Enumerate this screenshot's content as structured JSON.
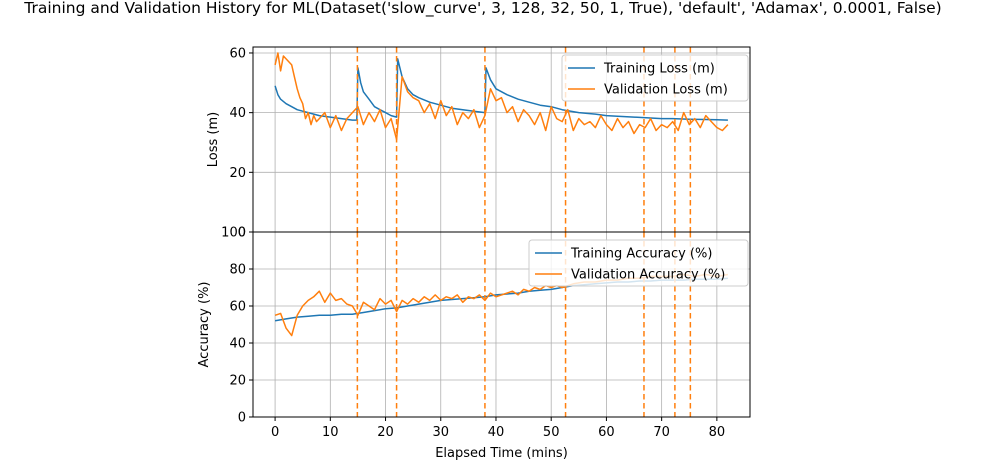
{
  "title": "Training and Validation History for ML(Dataset('slow_curve', 3, 128, 32, 50, 1, True), 'default', 'Adamax', 0.0001, False)",
  "colors": {
    "training": "#1f77b4",
    "validation": "#ff7f0e",
    "grid": "#b0b0b0"
  },
  "chart_data": [
    {
      "type": "line",
      "ylabel": "Loss (m)",
      "xlim": [
        -4,
        86
      ],
      "ylim": [
        0,
        62
      ],
      "yticks": [
        0,
        20,
        40,
        60
      ],
      "grid": true,
      "legend_position": "top-right",
      "series": [
        {
          "name": "Training Loss (m)",
          "color": "#1f77b4",
          "x": [
            0,
            0.5,
            1,
            2,
            3,
            4,
            5,
            6,
            7,
            8,
            10,
            12,
            14,
            14.8,
            15,
            15.5,
            16,
            17,
            18,
            19,
            20,
            21,
            22,
            22.2,
            23,
            24,
            25,
            26,
            28,
            30,
            32,
            34,
            36,
            38,
            38.2,
            39,
            40,
            42,
            44,
            46,
            48,
            50,
            52,
            55,
            58,
            60,
            62,
            65,
            68,
            70,
            72,
            75,
            78,
            80,
            82
          ],
          "y": [
            49,
            46,
            44.5,
            43,
            42,
            41,
            40.5,
            40,
            39.5,
            39,
            38.5,
            38,
            37.5,
            37.5,
            55,
            50,
            47,
            44.5,
            42,
            41,
            40,
            39,
            38.5,
            58,
            52,
            48,
            46,
            45,
            43.5,
            42.5,
            41.5,
            41,
            40.5,
            40,
            55,
            51,
            48,
            46,
            44.5,
            43.5,
            42.5,
            42,
            41,
            40,
            39.5,
            39,
            38.8,
            38.5,
            38.2,
            38,
            38,
            37.8,
            37.7,
            37.6,
            37.5
          ]
        },
        {
          "name": "Validation Loss (m)",
          "color": "#ff7f0e",
          "x": [
            0,
            0.5,
            1,
            1.5,
            2,
            2.5,
            3,
            3.5,
            4,
            4.5,
            5,
            5.5,
            6,
            6.5,
            7,
            7.5,
            8,
            9,
            10,
            11,
            12,
            13,
            14,
            15,
            16,
            17,
            18,
            19,
            20,
            21,
            22,
            23,
            24,
            25,
            26,
            27,
            28,
            29,
            30,
            31,
            32,
            33,
            34,
            35,
            36,
            37,
            38,
            39,
            40,
            41,
            42,
            43,
            44,
            45,
            46,
            47,
            48,
            49,
            50,
            51,
            52,
            53,
            54,
            55,
            56,
            57,
            58,
            59,
            60,
            61,
            62,
            63,
            64,
            65,
            66,
            67,
            68,
            69,
            70,
            71,
            72,
            73,
            74,
            75,
            76,
            77,
            78,
            79,
            80,
            81,
            82
          ],
          "y": [
            56,
            60,
            54,
            59,
            58,
            57,
            56,
            52,
            48,
            45,
            43,
            38,
            40,
            36,
            39,
            37,
            38,
            40,
            35,
            39,
            34,
            38,
            40,
            42,
            36,
            40,
            37,
            41,
            35,
            38,
            31,
            52,
            47,
            45,
            44,
            40,
            43,
            38,
            44,
            39,
            42,
            36,
            40,
            38,
            41,
            35,
            39,
            48,
            44,
            45,
            40,
            42,
            37,
            41,
            39,
            36,
            40,
            34,
            42,
            38,
            37,
            41,
            34,
            38,
            36,
            37,
            35,
            39,
            36,
            34,
            38,
            35,
            37,
            33,
            36,
            35,
            38,
            34,
            36,
            35,
            37,
            34,
            40,
            36,
            38,
            35,
            39,
            37,
            35,
            34,
            36
          ]
        }
      ]
    },
    {
      "type": "line",
      "ylabel": "Accuracy (%)",
      "xlabel": "Elapsed Time (mins)",
      "xlim": [
        -4,
        86
      ],
      "ylim": [
        0,
        100
      ],
      "yticks": [
        0,
        20,
        40,
        60,
        80,
        100
      ],
      "xticks": [
        0,
        10,
        20,
        30,
        40,
        50,
        60,
        70,
        80
      ],
      "grid": true,
      "legend_position": "top-right",
      "series": [
        {
          "name": "Training Accuracy (%)",
          "color": "#1f77b4",
          "x": [
            0,
            2,
            4,
            6,
            8,
            10,
            12,
            14,
            15,
            16,
            18,
            20,
            22,
            24,
            26,
            28,
            30,
            32,
            34,
            36,
            38,
            40,
            42,
            44,
            46,
            48,
            50,
            52,
            54,
            56,
            58,
            60,
            62,
            64,
            66,
            68,
            70,
            72,
            74,
            76,
            78,
            80,
            82
          ],
          "y": [
            52,
            53,
            54,
            54.5,
            55,
            55,
            55.5,
            55.5,
            56,
            56.5,
            57.5,
            58.5,
            59,
            60,
            61,
            62,
            63,
            63.5,
            64,
            64.5,
            65,
            66,
            66.5,
            67,
            68,
            68.5,
            69,
            70,
            71,
            71.5,
            72,
            72.5,
            73,
            73,
            73.5,
            73.5,
            74,
            74,
            74,
            74.5,
            74.5,
            74.5,
            75
          ]
        },
        {
          "name": "Validation Accuracy (%)",
          "color": "#ff7f0e",
          "x": [
            0,
            1,
            2,
            3,
            4,
            5,
            6,
            7,
            8,
            9,
            10,
            11,
            12,
            13,
            14,
            15,
            16,
            17,
            18,
            19,
            20,
            21,
            22,
            23,
            24,
            25,
            26,
            27,
            28,
            29,
            30,
            31,
            32,
            33,
            34,
            35,
            36,
            37,
            38,
            39,
            40,
            41,
            42,
            43,
            44,
            45,
            46,
            47,
            48,
            49,
            50,
            51,
            52,
            54,
            56,
            58,
            60,
            62,
            64,
            66,
            68,
            70,
            72,
            74,
            76,
            78,
            80,
            82
          ],
          "y": [
            55,
            56,
            48,
            44,
            55,
            60,
            63,
            65,
            68,
            62,
            67,
            63,
            64,
            61,
            60,
            55,
            62,
            60,
            58,
            64,
            61,
            63,
            57,
            63,
            61,
            64,
            62,
            65,
            63,
            66,
            63,
            65,
            64,
            66,
            62,
            65,
            64,
            66,
            63,
            67,
            65,
            66,
            67,
            68,
            66,
            69,
            68,
            70,
            69,
            71,
            70,
            71,
            70,
            72,
            73,
            73,
            74,
            74,
            75,
            75,
            76,
            76,
            76,
            77,
            76,
            77,
            76,
            77
          ]
        }
      ]
    }
  ],
  "vlines": {
    "color": "#ff7f0e",
    "x": [
      14.9,
      22.0,
      38.0,
      52.6,
      66.8,
      72.4,
      75.2
    ]
  }
}
